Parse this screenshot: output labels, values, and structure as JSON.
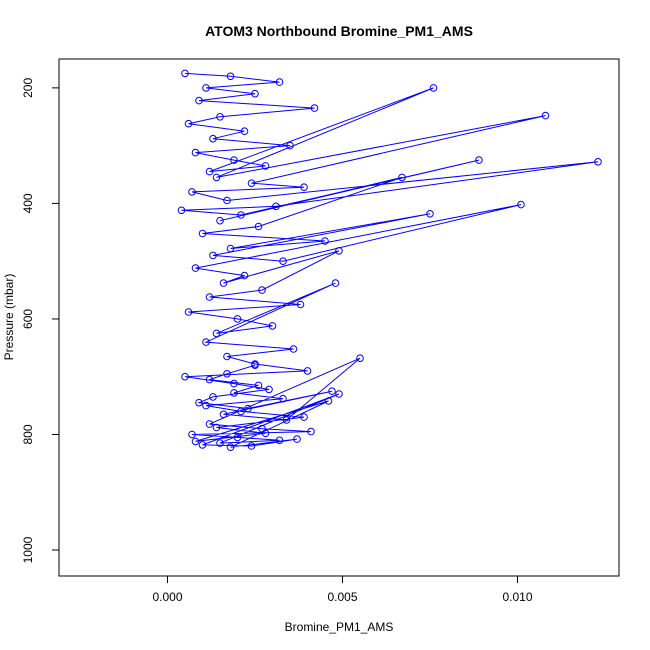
{
  "chart_data": {
    "type": "scatter",
    "title": "ATOM3 Northbound Bromine_PM1_AMS",
    "xlabel": "Bromine_PM1_AMS",
    "ylabel": "Pressure (mbar)",
    "xlim": [
      -0.0031,
      0.0129
    ],
    "ylim": [
      1045,
      150
    ],
    "y_reversed": true,
    "grid": false,
    "legend": "none",
    "x_ticks": [
      {
        "value": 0.0,
        "label": "0.000"
      },
      {
        "value": 0.005,
        "label": "0.005"
      },
      {
        "value": 0.01,
        "label": "0.010"
      }
    ],
    "y_ticks": [
      {
        "value": 200,
        "label": "200"
      },
      {
        "value": 400,
        "label": "400"
      },
      {
        "value": 600,
        "label": "600"
      },
      {
        "value": 800,
        "label": "800"
      },
      {
        "value": 1000,
        "label": "1000"
      }
    ],
    "marker": "open-circle",
    "connect_points": true,
    "color": "#0000ff",
    "series": [
      {
        "x": [
          0.0005,
          0.0018,
          0.0032,
          0.0011,
          0.0025,
          0.0009,
          0.0042,
          0.0015,
          0.0006,
          0.0022,
          0.0013,
          0.0035,
          0.0008,
          0.0019,
          0.0028,
          0.0012,
          0.0076,
          0.0014,
          0.0108,
          0.0024,
          0.0039,
          0.0007,
          0.0017,
          0.0123,
          0.0031,
          0.0004,
          0.0021,
          0.0089,
          0.0015,
          0.0067,
          0.0026,
          0.001,
          0.0045,
          0.0018,
          0.0075,
          0.0013,
          0.0033,
          0.0101,
          0.0008,
          0.0022,
          0.0016,
          0.0049,
          0.0027,
          0.0012,
          0.0038,
          0.0006,
          0.002,
          0.003,
          0.0014,
          0.0048,
          0.0011,
          0.0036,
          0.0017,
          0.0025,
          0.004,
          0.0005,
          0.0019,
          0.0029,
          0.0013,
          0.0009,
          0.0023,
          0.0047,
          0.0016,
          0.0034,
          0.0055,
          0.0012,
          0.0027,
          0.0041,
          0.0007,
          0.002,
          0.0032,
          0.0015,
          0.0049,
          0.001,
          0.0024,
          0.0037,
          0.0018,
          0.0046,
          0.0008,
          0.0028,
          0.0014,
          0.0039,
          0.0021,
          0.0011,
          0.0033,
          0.0019,
          0.0026,
          0.0012,
          0.0017,
          0.0025
        ],
        "y": [
          175,
          180,
          190,
          200,
          210,
          222,
          235,
          250,
          262,
          275,
          288,
          300,
          312,
          325,
          335,
          345,
          200,
          355,
          248,
          365,
          372,
          380,
          395,
          328,
          405,
          412,
          420,
          325,
          430,
          355,
          440,
          452,
          465,
          478,
          418,
          490,
          500,
          402,
          512,
          525,
          538,
          482,
          550,
          562,
          575,
          588,
          600,
          612,
          625,
          538,
          640,
          652,
          665,
          678,
          690,
          700,
          712,
          722,
          735,
          745,
          755,
          725,
          765,
          775,
          668,
          782,
          790,
          795,
          800,
          805,
          810,
          815,
          730,
          818,
          820,
          808,
          822,
          742,
          812,
          798,
          788,
          770,
          760,
          750,
          738,
          728,
          715,
          705,
          695,
          680
        ]
      }
    ]
  }
}
